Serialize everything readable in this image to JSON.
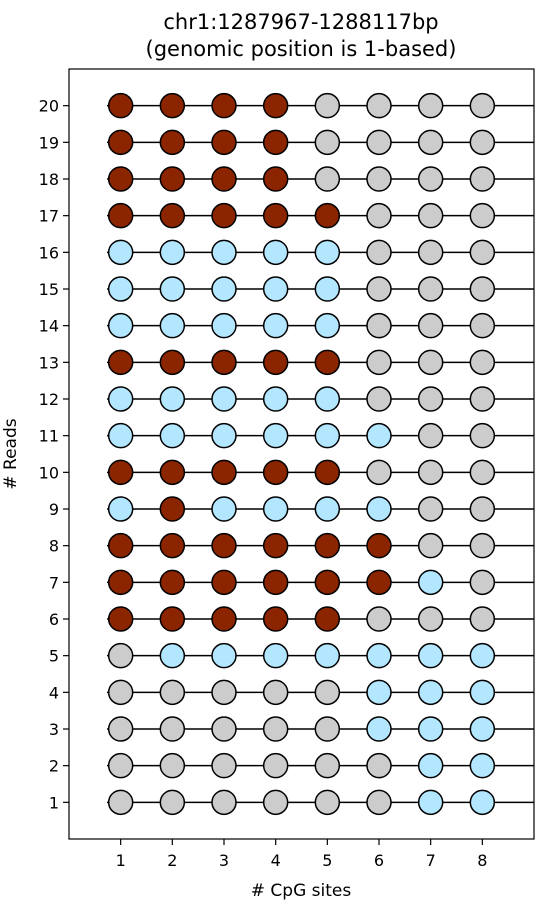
{
  "chart_data": {
    "type": "scatter",
    "title_lines": [
      "chr1:1287967-1288117bp",
      "(genomic position is 1-based)"
    ],
    "xlabel": "# CpG sites",
    "ylabel": "# Reads",
    "x_ticks": [
      1,
      2,
      3,
      4,
      5,
      6,
      7,
      8
    ],
    "y_ticks": [
      1,
      2,
      3,
      4,
      5,
      6,
      7,
      8,
      9,
      10,
      11,
      12,
      13,
      14,
      15,
      16,
      17,
      18,
      19,
      20
    ],
    "xlim": [
      0,
      9
    ],
    "ylim": [
      0,
      21
    ],
    "grid": false,
    "legend": "none",
    "state_colors": {
      "M": "#8b2500",
      "U": "#b3e6ff",
      "N": "#cccccc"
    },
    "line_color": "#000000",
    "reads": [
      {
        "y": 1,
        "sites": [
          "N",
          "N",
          "N",
          "N",
          "N",
          "N",
          "U",
          "U"
        ]
      },
      {
        "y": 2,
        "sites": [
          "N",
          "N",
          "N",
          "N",
          "N",
          "N",
          "U",
          "U"
        ]
      },
      {
        "y": 3,
        "sites": [
          "N",
          "N",
          "N",
          "N",
          "N",
          "U",
          "U",
          "U"
        ]
      },
      {
        "y": 4,
        "sites": [
          "N",
          "N",
          "N",
          "N",
          "N",
          "U",
          "U",
          "U"
        ]
      },
      {
        "y": 5,
        "sites": [
          "N",
          "U",
          "U",
          "U",
          "U",
          "U",
          "U",
          "U"
        ]
      },
      {
        "y": 6,
        "sites": [
          "M",
          "M",
          "M",
          "M",
          "M",
          "N",
          "N",
          "N"
        ]
      },
      {
        "y": 7,
        "sites": [
          "M",
          "M",
          "M",
          "M",
          "M",
          "M",
          "U",
          "N"
        ]
      },
      {
        "y": 8,
        "sites": [
          "M",
          "M",
          "M",
          "M",
          "M",
          "M",
          "N",
          "N"
        ]
      },
      {
        "y": 9,
        "sites": [
          "U",
          "M",
          "U",
          "U",
          "U",
          "U",
          "N",
          "N"
        ]
      },
      {
        "y": 10,
        "sites": [
          "M",
          "M",
          "M",
          "M",
          "M",
          "N",
          "N",
          "N"
        ]
      },
      {
        "y": 11,
        "sites": [
          "U",
          "U",
          "U",
          "U",
          "U",
          "U",
          "N",
          "N"
        ]
      },
      {
        "y": 12,
        "sites": [
          "U",
          "U",
          "U",
          "U",
          "U",
          "N",
          "N",
          "N"
        ]
      },
      {
        "y": 13,
        "sites": [
          "M",
          "M",
          "M",
          "M",
          "M",
          "N",
          "N",
          "N"
        ]
      },
      {
        "y": 14,
        "sites": [
          "U",
          "U",
          "U",
          "U",
          "U",
          "N",
          "N",
          "N"
        ]
      },
      {
        "y": 15,
        "sites": [
          "U",
          "U",
          "U",
          "U",
          "U",
          "N",
          "N",
          "N"
        ]
      },
      {
        "y": 16,
        "sites": [
          "U",
          "U",
          "U",
          "U",
          "U",
          "N",
          "N",
          "N"
        ]
      },
      {
        "y": 17,
        "sites": [
          "M",
          "M",
          "M",
          "M",
          "M",
          "N",
          "N",
          "N"
        ]
      },
      {
        "y": 18,
        "sites": [
          "M",
          "M",
          "M",
          "M",
          "N",
          "N",
          "N",
          "N"
        ]
      },
      {
        "y": 19,
        "sites": [
          "M",
          "M",
          "M",
          "M",
          "N",
          "N",
          "N",
          "N"
        ]
      },
      {
        "y": 20,
        "sites": [
          "M",
          "M",
          "M",
          "M",
          "N",
          "N",
          "N",
          "N"
        ]
      }
    ]
  }
}
